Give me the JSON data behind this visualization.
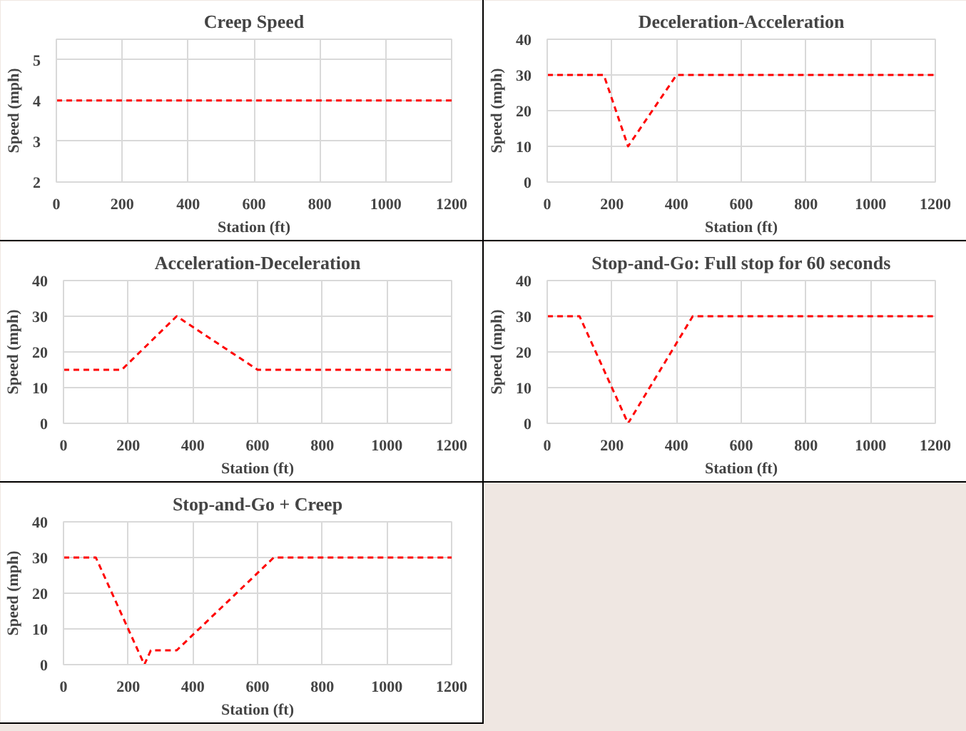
{
  "chart_data": [
    {
      "type": "line",
      "title": "Creep Speed",
      "xlabel": "Station (ft)",
      "ylabel": "Speed (mph)",
      "xlim": [
        0,
        1200
      ],
      "ylim": [
        2,
        5.5
      ],
      "xticks": [
        0,
        200,
        400,
        600,
        800,
        1000,
        1200
      ],
      "yticks": [
        2,
        3,
        4,
        5
      ],
      "grid": true,
      "line_style": "dashed",
      "series": [
        {
          "color": "#ff0000",
          "x": [
            0,
            1200
          ],
          "values": [
            4,
            4
          ]
        }
      ]
    },
    {
      "type": "line",
      "title": "Deceleration-Acceleration",
      "xlabel": "Station (ft)",
      "ylabel": "Speed (mph)",
      "xlim": [
        0,
        1200
      ],
      "ylim": [
        0,
        40
      ],
      "xticks": [
        0,
        200,
        400,
        600,
        800,
        1000,
        1200
      ],
      "yticks": [
        0,
        10,
        20,
        30,
        40
      ],
      "grid": true,
      "line_style": "dashed",
      "series": [
        {
          "color": "#ff0000",
          "x": [
            0,
            175,
            250,
            400,
            1200
          ],
          "values": [
            30,
            30,
            10,
            30,
            30
          ]
        }
      ]
    },
    {
      "type": "line",
      "title": "Acceleration-Deceleration",
      "xlabel": "Station (ft)",
      "ylabel": "Speed (mph)",
      "xlim": [
        0,
        1200
      ],
      "ylim": [
        0,
        40
      ],
      "xticks": [
        0,
        200,
        400,
        600,
        800,
        1000,
        1200
      ],
      "yticks": [
        0,
        10,
        20,
        30,
        40
      ],
      "grid": true,
      "line_style": "dashed",
      "series": [
        {
          "color": "#ff0000",
          "x": [
            0,
            180,
            350,
            600,
            1200
          ],
          "values": [
            15,
            15,
            30,
            15,
            15
          ]
        }
      ]
    },
    {
      "type": "line",
      "title": "Stop-and-Go: Full stop for 60 seconds",
      "xlabel": "Station (ft)",
      "ylabel": "Speed (mph)",
      "xlim": [
        0,
        1200
      ],
      "ylim": [
        0,
        40
      ],
      "xticks": [
        0,
        200,
        400,
        600,
        800,
        1000,
        1200
      ],
      "yticks": [
        0,
        10,
        20,
        30,
        40
      ],
      "grid": true,
      "line_style": "dashed",
      "series": [
        {
          "color": "#ff0000",
          "x": [
            0,
            100,
            250,
            450,
            1200
          ],
          "values": [
            30,
            30,
            0,
            30,
            30
          ]
        }
      ]
    },
    {
      "type": "line",
      "title": "Stop-and-Go + Creep",
      "xlabel": "Station (ft)",
      "ylabel": "Speed (mph)",
      "xlim": [
        0,
        1200
      ],
      "ylim": [
        0,
        40
      ],
      "xticks": [
        0,
        200,
        400,
        600,
        800,
        1000,
        1200
      ],
      "yticks": [
        0,
        10,
        20,
        30,
        40
      ],
      "grid": true,
      "line_style": "dashed",
      "series": [
        {
          "color": "#ff0000",
          "x": [
            0,
            100,
            250,
            270,
            350,
            650,
            1200
          ],
          "values": [
            30,
            30,
            0,
            4,
            4,
            30,
            30
          ]
        }
      ]
    }
  ]
}
